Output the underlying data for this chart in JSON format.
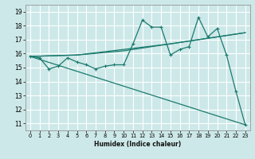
{
  "xlabel": "Humidex (Indice chaleur)",
  "bg_color": "#cde8e8",
  "grid_color": "#ffffff",
  "line_color": "#1a7a6e",
  "xlim": [
    -0.5,
    23.5
  ],
  "ylim": [
    10.5,
    19.5
  ],
  "xticks": [
    0,
    1,
    2,
    3,
    4,
    5,
    6,
    7,
    8,
    9,
    10,
    11,
    12,
    13,
    14,
    15,
    16,
    17,
    18,
    19,
    20,
    21,
    22,
    23
  ],
  "yticks": [
    11,
    12,
    13,
    14,
    15,
    16,
    17,
    18,
    19
  ],
  "line1_x": [
    0,
    1,
    2,
    3,
    4,
    5,
    6,
    7,
    8,
    9,
    10,
    11,
    12,
    13,
    14,
    15,
    16,
    17,
    18,
    19,
    20,
    21,
    22,
    23
  ],
  "line1_y": [
    15.8,
    15.7,
    14.9,
    15.1,
    15.7,
    15.4,
    15.2,
    14.9,
    15.1,
    15.2,
    15.2,
    16.7,
    18.4,
    17.9,
    17.9,
    15.9,
    16.3,
    16.5,
    18.6,
    17.2,
    17.8,
    15.9,
    13.3,
    10.9
  ],
  "line2_x": [
    0,
    5,
    10,
    15,
    20,
    23
  ],
  "line2_y": [
    15.8,
    15.9,
    16.3,
    16.7,
    17.2,
    17.5
  ],
  "line3_x": [
    0,
    5,
    10,
    15,
    20,
    23
  ],
  "line3_y": [
    15.8,
    15.9,
    16.2,
    16.7,
    17.2,
    17.5
  ],
  "line4_x": [
    0,
    23
  ],
  "line4_y": [
    15.8,
    10.9
  ]
}
